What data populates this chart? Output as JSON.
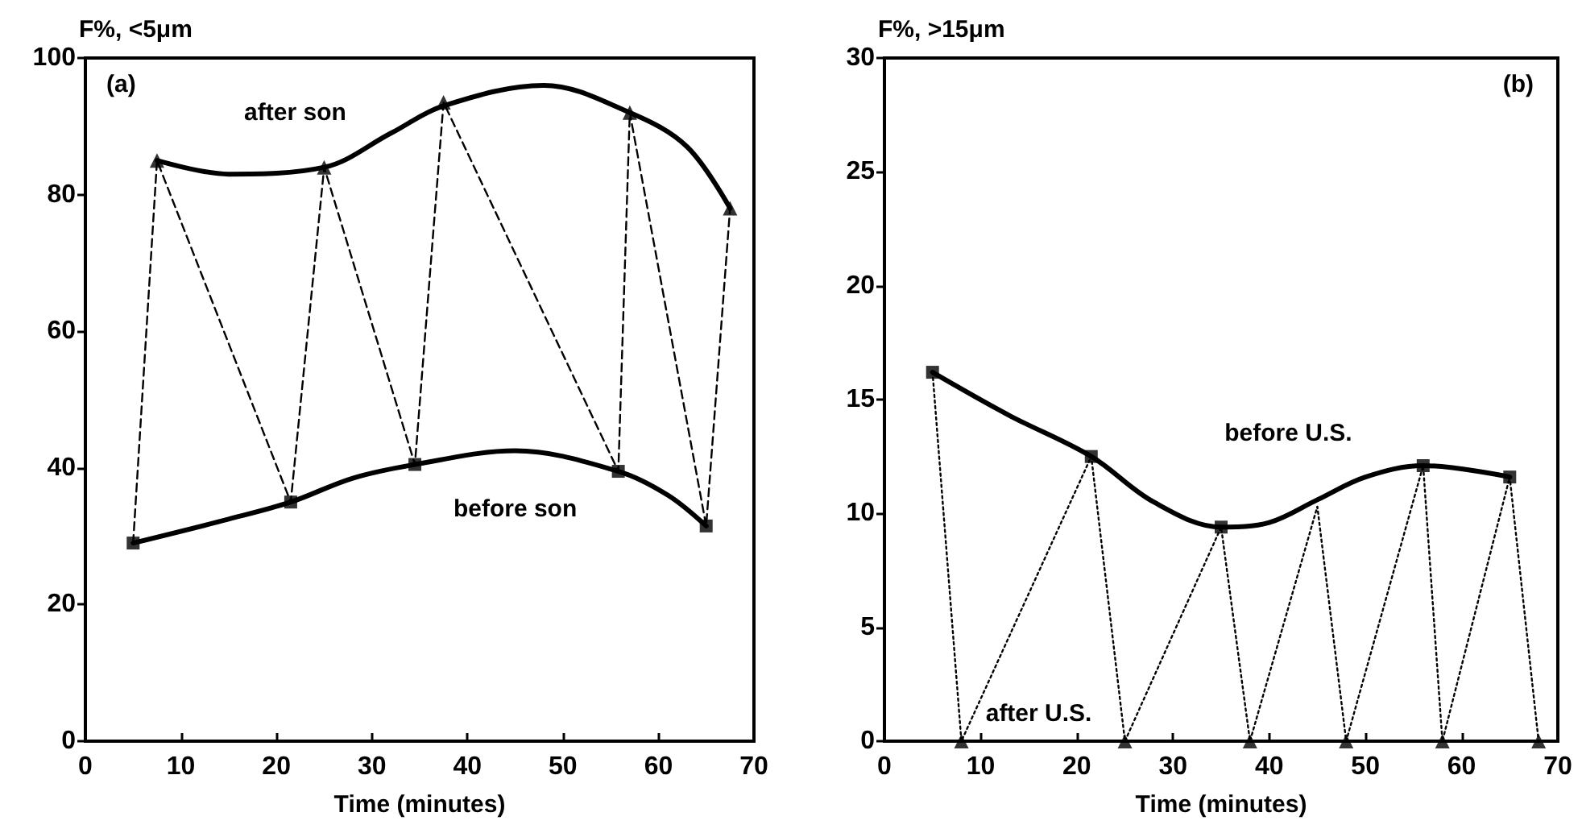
{
  "chart_data": [
    {
      "type": "line",
      "title": "(a)",
      "xlabel": "Time (minutes)",
      "ylabel": "F%, <5μm",
      "xlim": [
        0,
        70
      ],
      "xticks": [
        0,
        10,
        20,
        30,
        40,
        50,
        60,
        70
      ],
      "ylim": [
        0,
        100
      ],
      "yticks": [
        0,
        20,
        40,
        60,
        80,
        100
      ],
      "grid": false,
      "legend": false,
      "series": [
        {
          "name": "after son",
          "color": "#000000",
          "marker": "none",
          "line_style": "solid",
          "x": [
            7.5,
            15,
            25,
            32,
            37.5,
            48,
            57,
            63,
            67.5
          ],
          "values": [
            85,
            83,
            84,
            89,
            93,
            96,
            92,
            87,
            78
          ]
        },
        {
          "name": "before son",
          "color": "#000000",
          "marker": "none",
          "line_style": "solid",
          "x": [
            5,
            15,
            21.5,
            28,
            34.5,
            45,
            55.8,
            61,
            65
          ],
          "values": [
            29,
            32.5,
            35,
            38.5,
            40.5,
            42.5,
            39.5,
            36,
            31.5
          ]
        },
        {
          "color": "#000000",
          "marker": "none",
          "line_style": "dashed",
          "x": [
            5,
            7.5,
            21.5,
            25,
            34.5,
            37.5,
            55.8,
            57,
            65,
            67.5
          ],
          "values": [
            29,
            85,
            35,
            84,
            40.5,
            93.5,
            39.5,
            92,
            31.5,
            78
          ]
        },
        {
          "type": "scatter",
          "color": "#000000",
          "marker": "triangle",
          "x": [
            7.5,
            25,
            37.5,
            57,
            67.5
          ],
          "values": [
            85,
            84,
            93.5,
            92,
            78
          ]
        },
        {
          "type": "scatter",
          "color": "#000000",
          "marker": "square",
          "x": [
            5,
            21.5,
            34.5,
            55.8,
            65
          ],
          "values": [
            29,
            35,
            40.5,
            39.5,
            31.5
          ]
        }
      ]
    },
    {
      "type": "line",
      "title": "(b)",
      "xlabel": "Time (minutes)",
      "ylabel": "F%, >15μm",
      "xlim": [
        0,
        70
      ],
      "xticks": [
        0,
        10,
        20,
        30,
        40,
        50,
        60,
        70
      ],
      "ylim": [
        0,
        30
      ],
      "yticks": [
        0,
        5,
        10,
        15,
        20,
        25,
        30
      ],
      "grid": false,
      "legend": false,
      "series": [
        {
          "name": "before U.S.",
          "color": "#000000",
          "marker": "none",
          "line_style": "solid",
          "x": [
            5,
            13,
            21.5,
            28,
            35,
            40,
            45,
            50,
            56,
            65
          ],
          "values": [
            16.2,
            14.3,
            12.5,
            10.5,
            9.4,
            9.6,
            10.6,
            11.6,
            12.1,
            11.6
          ]
        },
        {
          "color": "#000000",
          "marker": "none",
          "line_style": "dotted",
          "x": [
            5,
            8,
            21.5,
            25,
            35,
            38,
            45,
            48,
            56,
            58,
            65,
            68
          ],
          "values": [
            16.2,
            0,
            12.5,
            0,
            9.4,
            0,
            10.3,
            0,
            12.1,
            0,
            11.6,
            0
          ]
        },
        {
          "type": "scatter",
          "color": "#000000",
          "marker": "square",
          "x": [
            5,
            21.5,
            35,
            56,
            65
          ],
          "values": [
            16.2,
            12.5,
            9.4,
            12.1,
            11.6
          ]
        },
        {
          "name": "after U.S.",
          "type": "scatter",
          "color": "#000000",
          "marker": "triangle",
          "x": [
            8,
            25,
            38,
            48,
            58,
            68
          ],
          "values": [
            0,
            0,
            0,
            0,
            0,
            0
          ]
        }
      ]
    }
  ]
}
